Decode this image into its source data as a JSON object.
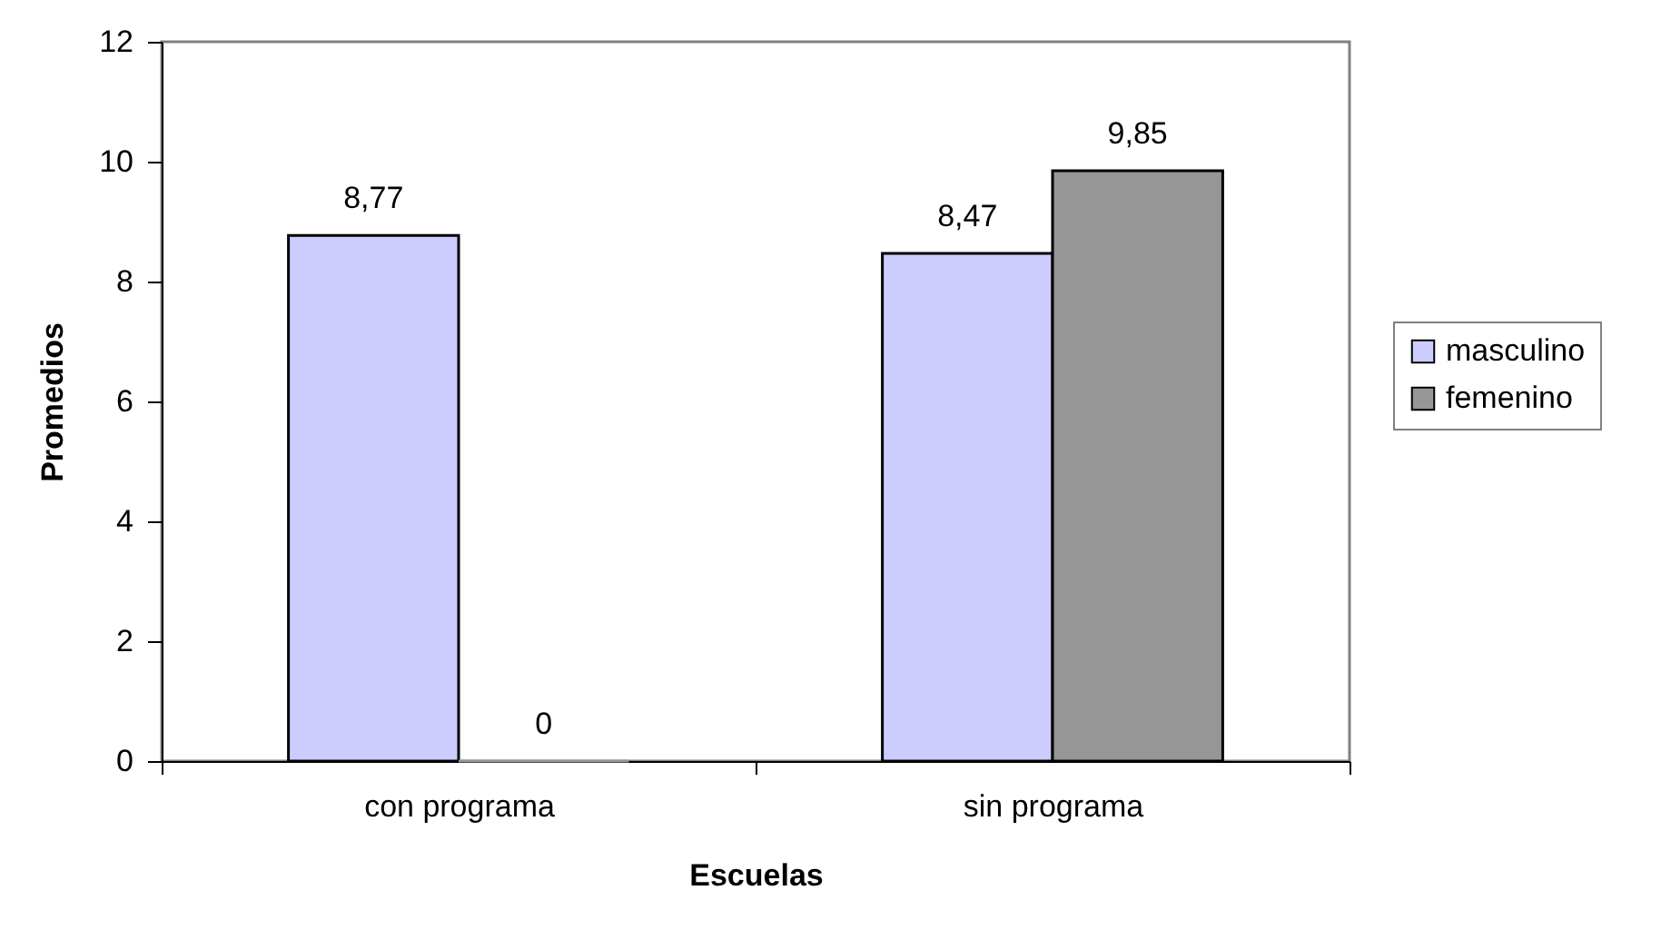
{
  "chart_data": {
    "type": "bar",
    "categories": [
      "con programa",
      "sin programa"
    ],
    "series": [
      {
        "name": "masculino",
        "color": "#ccccff",
        "values": [
          8.77,
          8.47
        ],
        "value_labels": [
          "8,77",
          "8,47"
        ]
      },
      {
        "name": "femenino",
        "color": "#969696",
        "values": [
          0,
          9.85
        ],
        "value_labels": [
          "0",
          "9,85"
        ]
      }
    ],
    "xlabel": "Escuelas",
    "ylabel": "Promedios",
    "ylim": [
      0,
      12
    ],
    "yticks": [
      0,
      2,
      4,
      6,
      8,
      10,
      12
    ],
    "legend": "right"
  }
}
